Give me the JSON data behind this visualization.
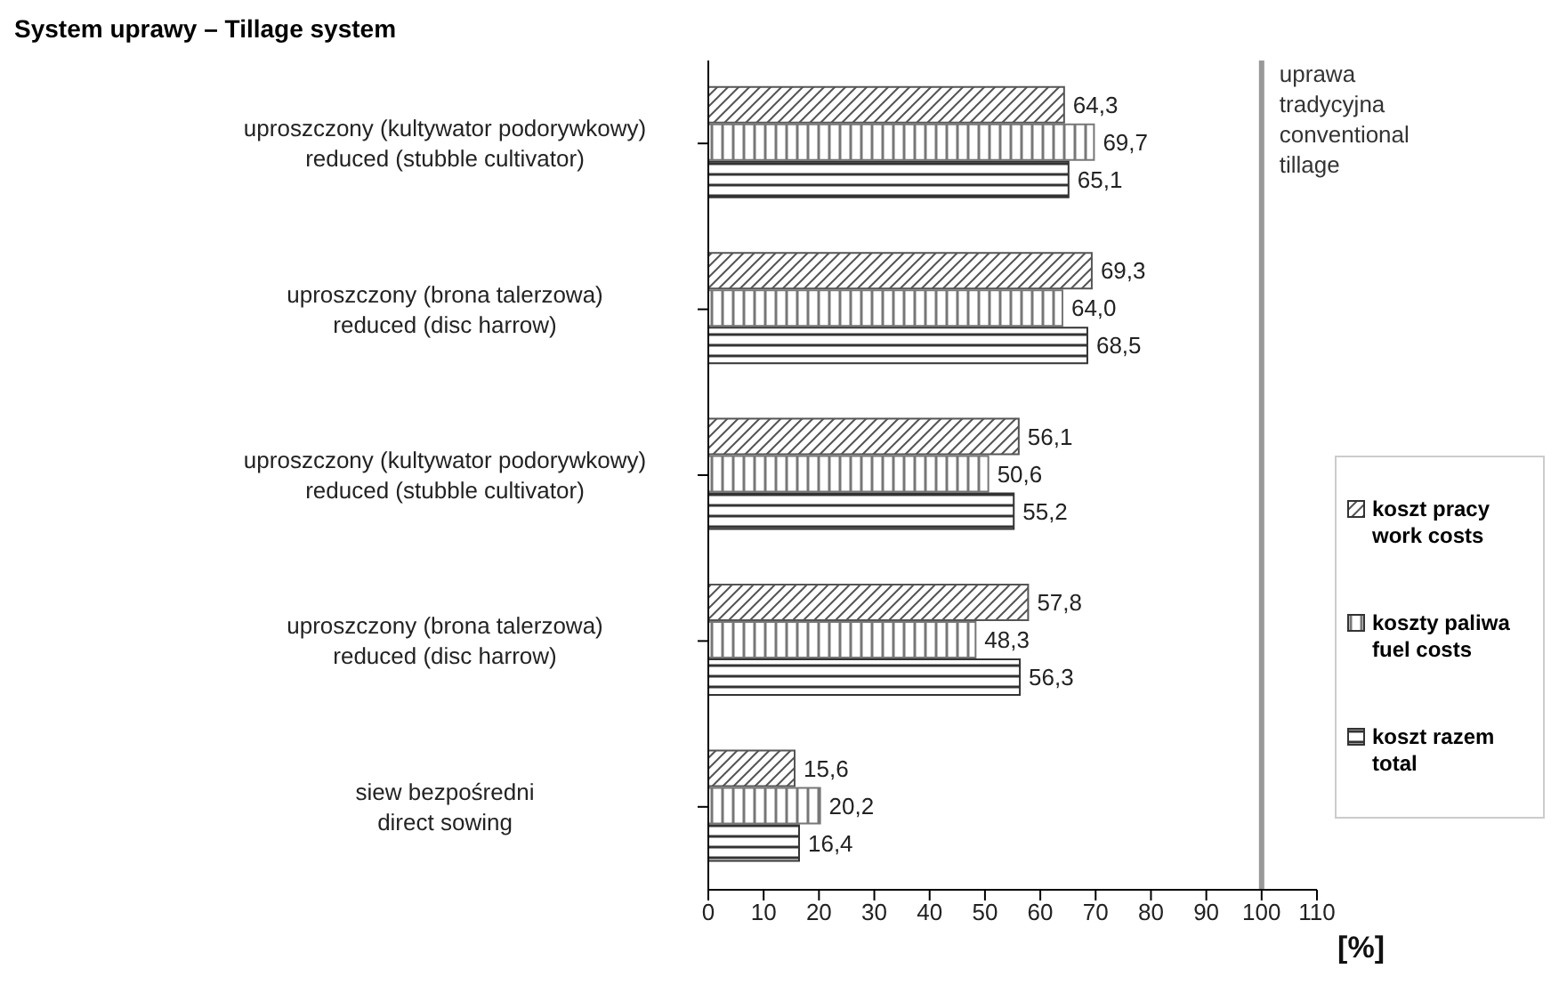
{
  "chart_data": {
    "type": "bar",
    "orientation": "horizontal",
    "title": "System uprawy – Tillage system",
    "xlabel": "[%]",
    "categories": [
      "uproszczony (kultywator podorywkowy)\nreduced (stubble cultivator)",
      "uproszczony (brona talerzowa)\nreduced (disc harrow)",
      "uproszczony (kultywator podorywkowy)\nreduced (stubble cultivator)",
      "uproszczony (brona talerzowa)\nreduced (disc harrow)",
      "siew bezpośredni\ndirect sowing"
    ],
    "series": [
      {
        "name": "koszt pracy\nwork costs",
        "color": "#555555",
        "values": [
          64.3,
          69.3,
          56.1,
          57.8,
          15.6
        ],
        "value_labels": [
          "64,3",
          "69,3",
          "56,1",
          "57,8",
          "15,6"
        ]
      },
      {
        "name": "koszty paliwa\nfuel costs",
        "color": "#777777",
        "values": [
          69.7,
          64.0,
          50.6,
          48.3,
          20.2
        ],
        "value_labels": [
          "69,7",
          "64,0",
          "50,6",
          "48,3",
          "20,2"
        ]
      },
      {
        "name": "koszt razem\ntotal",
        "color": "#333333",
        "values": [
          65.1,
          68.5,
          55.2,
          56.3,
          16.4
        ],
        "value_labels": [
          "65,1",
          "68,5",
          "55,2",
          "56,3",
          "16,4"
        ]
      }
    ],
    "xlim": [
      0,
      110
    ],
    "xticks": [
      0,
      10,
      20,
      30,
      40,
      50,
      60,
      70,
      80,
      90,
      100,
      110
    ],
    "ref_lines": [
      {
        "axis": "x",
        "value": 100,
        "label": "uprawa\ntradycyjna\nconventional\ntillage",
        "color": "#999999"
      }
    ],
    "grid": false,
    "legend": "right"
  }
}
